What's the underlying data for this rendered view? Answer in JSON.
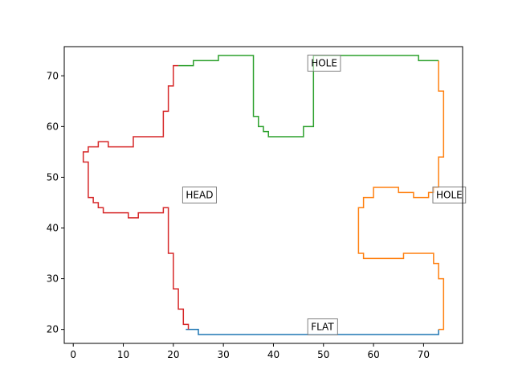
{
  "chart_data": {
    "type": "line",
    "title": "",
    "xlabel": "",
    "ylabel": "",
    "xlim": [
      -1.8,
      77.8
    ],
    "ylim": [
      17.25,
      75.75
    ],
    "grid": false,
    "xticks": [
      0,
      10,
      20,
      30,
      40,
      50,
      60,
      70
    ],
    "yticks": [
      20,
      30,
      40,
      50,
      60,
      70
    ],
    "series": [
      {
        "color": "#1f77b4",
        "step": "post",
        "x": [
          22.5,
          25,
          73,
          73
        ],
        "y": [
          20,
          19,
          19,
          20
        ]
      },
      {
        "color": "#ff7f0e",
        "step": "post",
        "x": [
          73,
          74,
          74,
          73,
          73,
          72,
          72,
          66,
          66,
          61,
          61,
          59,
          59,
          58,
          57,
          57,
          58,
          58,
          60,
          60,
          65,
          65,
          68,
          68,
          71,
          71,
          72,
          72,
          73,
          73,
          74,
          74,
          73,
          73
        ],
        "y": [
          20,
          20,
          30,
          30,
          33,
          33,
          35,
          35,
          34,
          34,
          34,
          34,
          34,
          35,
          36,
          44,
          44,
          46,
          47,
          48,
          48,
          47,
          47,
          46,
          46,
          47,
          47,
          48,
          48,
          54,
          54,
          67,
          67,
          73
        ]
      },
      {
        "color": "#2ca02c",
        "step": "post",
        "x": [
          73,
          69,
          69,
          48,
          48,
          48,
          48,
          48,
          47,
          46,
          46,
          40,
          39,
          38,
          37,
          36,
          36,
          36,
          36,
          29,
          29,
          24,
          24,
          21
        ],
        "y": [
          73,
          73,
          74,
          74,
          73,
          68,
          68,
          60,
          60,
          59,
          58,
          58,
          59,
          60,
          62,
          62,
          74,
          74,
          74,
          74,
          73,
          73,
          72,
          72
        ]
      },
      {
        "color": "#d62728",
        "step": "post",
        "x": [
          21,
          20,
          20,
          19,
          19,
          18,
          18,
          12,
          12,
          7,
          7,
          5,
          5,
          3,
          3,
          2,
          2,
          3,
          4,
          5,
          6,
          11,
          11,
          13,
          13,
          18,
          18,
          19,
          19,
          20,
          20,
          21,
          21,
          22,
          22,
          23
        ],
        "y": [
          72,
          72,
          68,
          68,
          63,
          63,
          58,
          58,
          56,
          56,
          57,
          57,
          56,
          56,
          55,
          55,
          53,
          46,
          45,
          44,
          43,
          42,
          42,
          43,
          43,
          44,
          44,
          41,
          35,
          35,
          28,
          28,
          24,
          24,
          21,
          20
        ]
      }
    ],
    "annotations": [
      {
        "text": "HEAD",
        "x": 22.5,
        "y": 46.5
      },
      {
        "text": "HOLE",
        "x": 47.5,
        "y": 72.5
      },
      {
        "text": "HOLE",
        "x": 72.5,
        "y": 46.5
      },
      {
        "text": "FLAT",
        "x": 47.5,
        "y": 20.5
      }
    ]
  }
}
